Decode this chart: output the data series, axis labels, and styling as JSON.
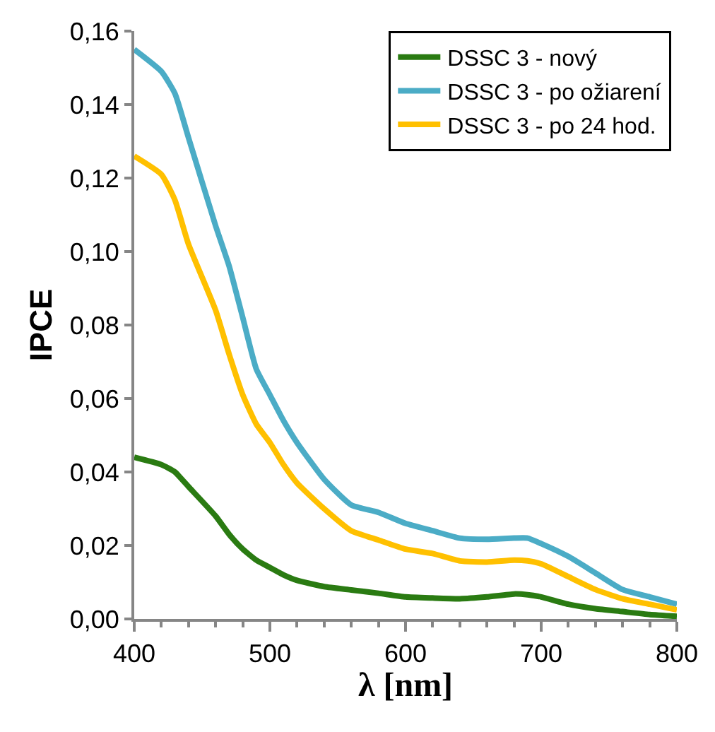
{
  "chart_data": {
    "type": "line",
    "xlabel": "λ [nm]",
    "ylabel": "IPCE",
    "xlim": [
      400,
      800
    ],
    "xticks": [
      400,
      500,
      600,
      700,
      800
    ],
    "ylim": [
      0,
      0.16
    ],
    "yticks": [
      {
        "value": 0,
        "label": "0,00"
      },
      {
        "value": 0.02,
        "label": "0,02"
      },
      {
        "value": 0.04,
        "label": "0,04"
      },
      {
        "value": 0.06,
        "label": "0,06"
      },
      {
        "value": 0.08,
        "label": "0,08"
      },
      {
        "value": 0.1,
        "label": "0,10"
      },
      {
        "value": 0.12,
        "label": "0,12"
      },
      {
        "value": 0.14,
        "label": "0,14"
      },
      {
        "value": 0.16,
        "label": "0,16"
      }
    ],
    "legend": "top right",
    "marker": "none",
    "x": [
      400,
      420,
      430,
      440,
      460,
      470,
      480,
      490,
      500,
      510,
      520,
      540,
      560,
      580,
      600,
      620,
      640,
      660,
      680,
      690,
      700,
      720,
      740,
      760,
      780,
      800
    ],
    "series": [
      {
        "name": "DSSC 3 - nový",
        "color": "#2a7b12",
        "line_style": "solid",
        "values": [
          0.044,
          0.042,
          0.04,
          0.036,
          0.028,
          0.023,
          0.019,
          0.016,
          0.014,
          0.012,
          0.0105,
          0.0088,
          0.0079,
          0.007,
          0.006,
          0.0057,
          0.0055,
          0.006,
          0.0068,
          0.0066,
          0.006,
          0.004,
          0.0028,
          0.002,
          0.0012,
          0.0007
        ]
      },
      {
        "name": "DSSC 3 - po ožiarení",
        "color": "#4bacc6",
        "line_style": "solid",
        "values": [
          0.155,
          0.149,
          0.143,
          0.131,
          0.107,
          0.096,
          0.082,
          0.068,
          0.061,
          0.054,
          0.048,
          0.038,
          0.031,
          0.029,
          0.026,
          0.024,
          0.022,
          0.0217,
          0.022,
          0.022,
          0.0205,
          0.017,
          0.0125,
          0.008,
          0.006,
          0.004
        ]
      },
      {
        "name": "DSSC 3 - po 24 hod.",
        "color": "#ffc000",
        "line_style": "solid",
        "values": [
          0.126,
          0.121,
          0.114,
          0.102,
          0.084,
          0.072,
          0.061,
          0.053,
          0.048,
          0.042,
          0.037,
          0.03,
          0.024,
          0.0215,
          0.019,
          0.0178,
          0.0158,
          0.0155,
          0.016,
          0.0158,
          0.015,
          0.0115,
          0.008,
          0.0055,
          0.004,
          0.0025
        ]
      }
    ]
  }
}
